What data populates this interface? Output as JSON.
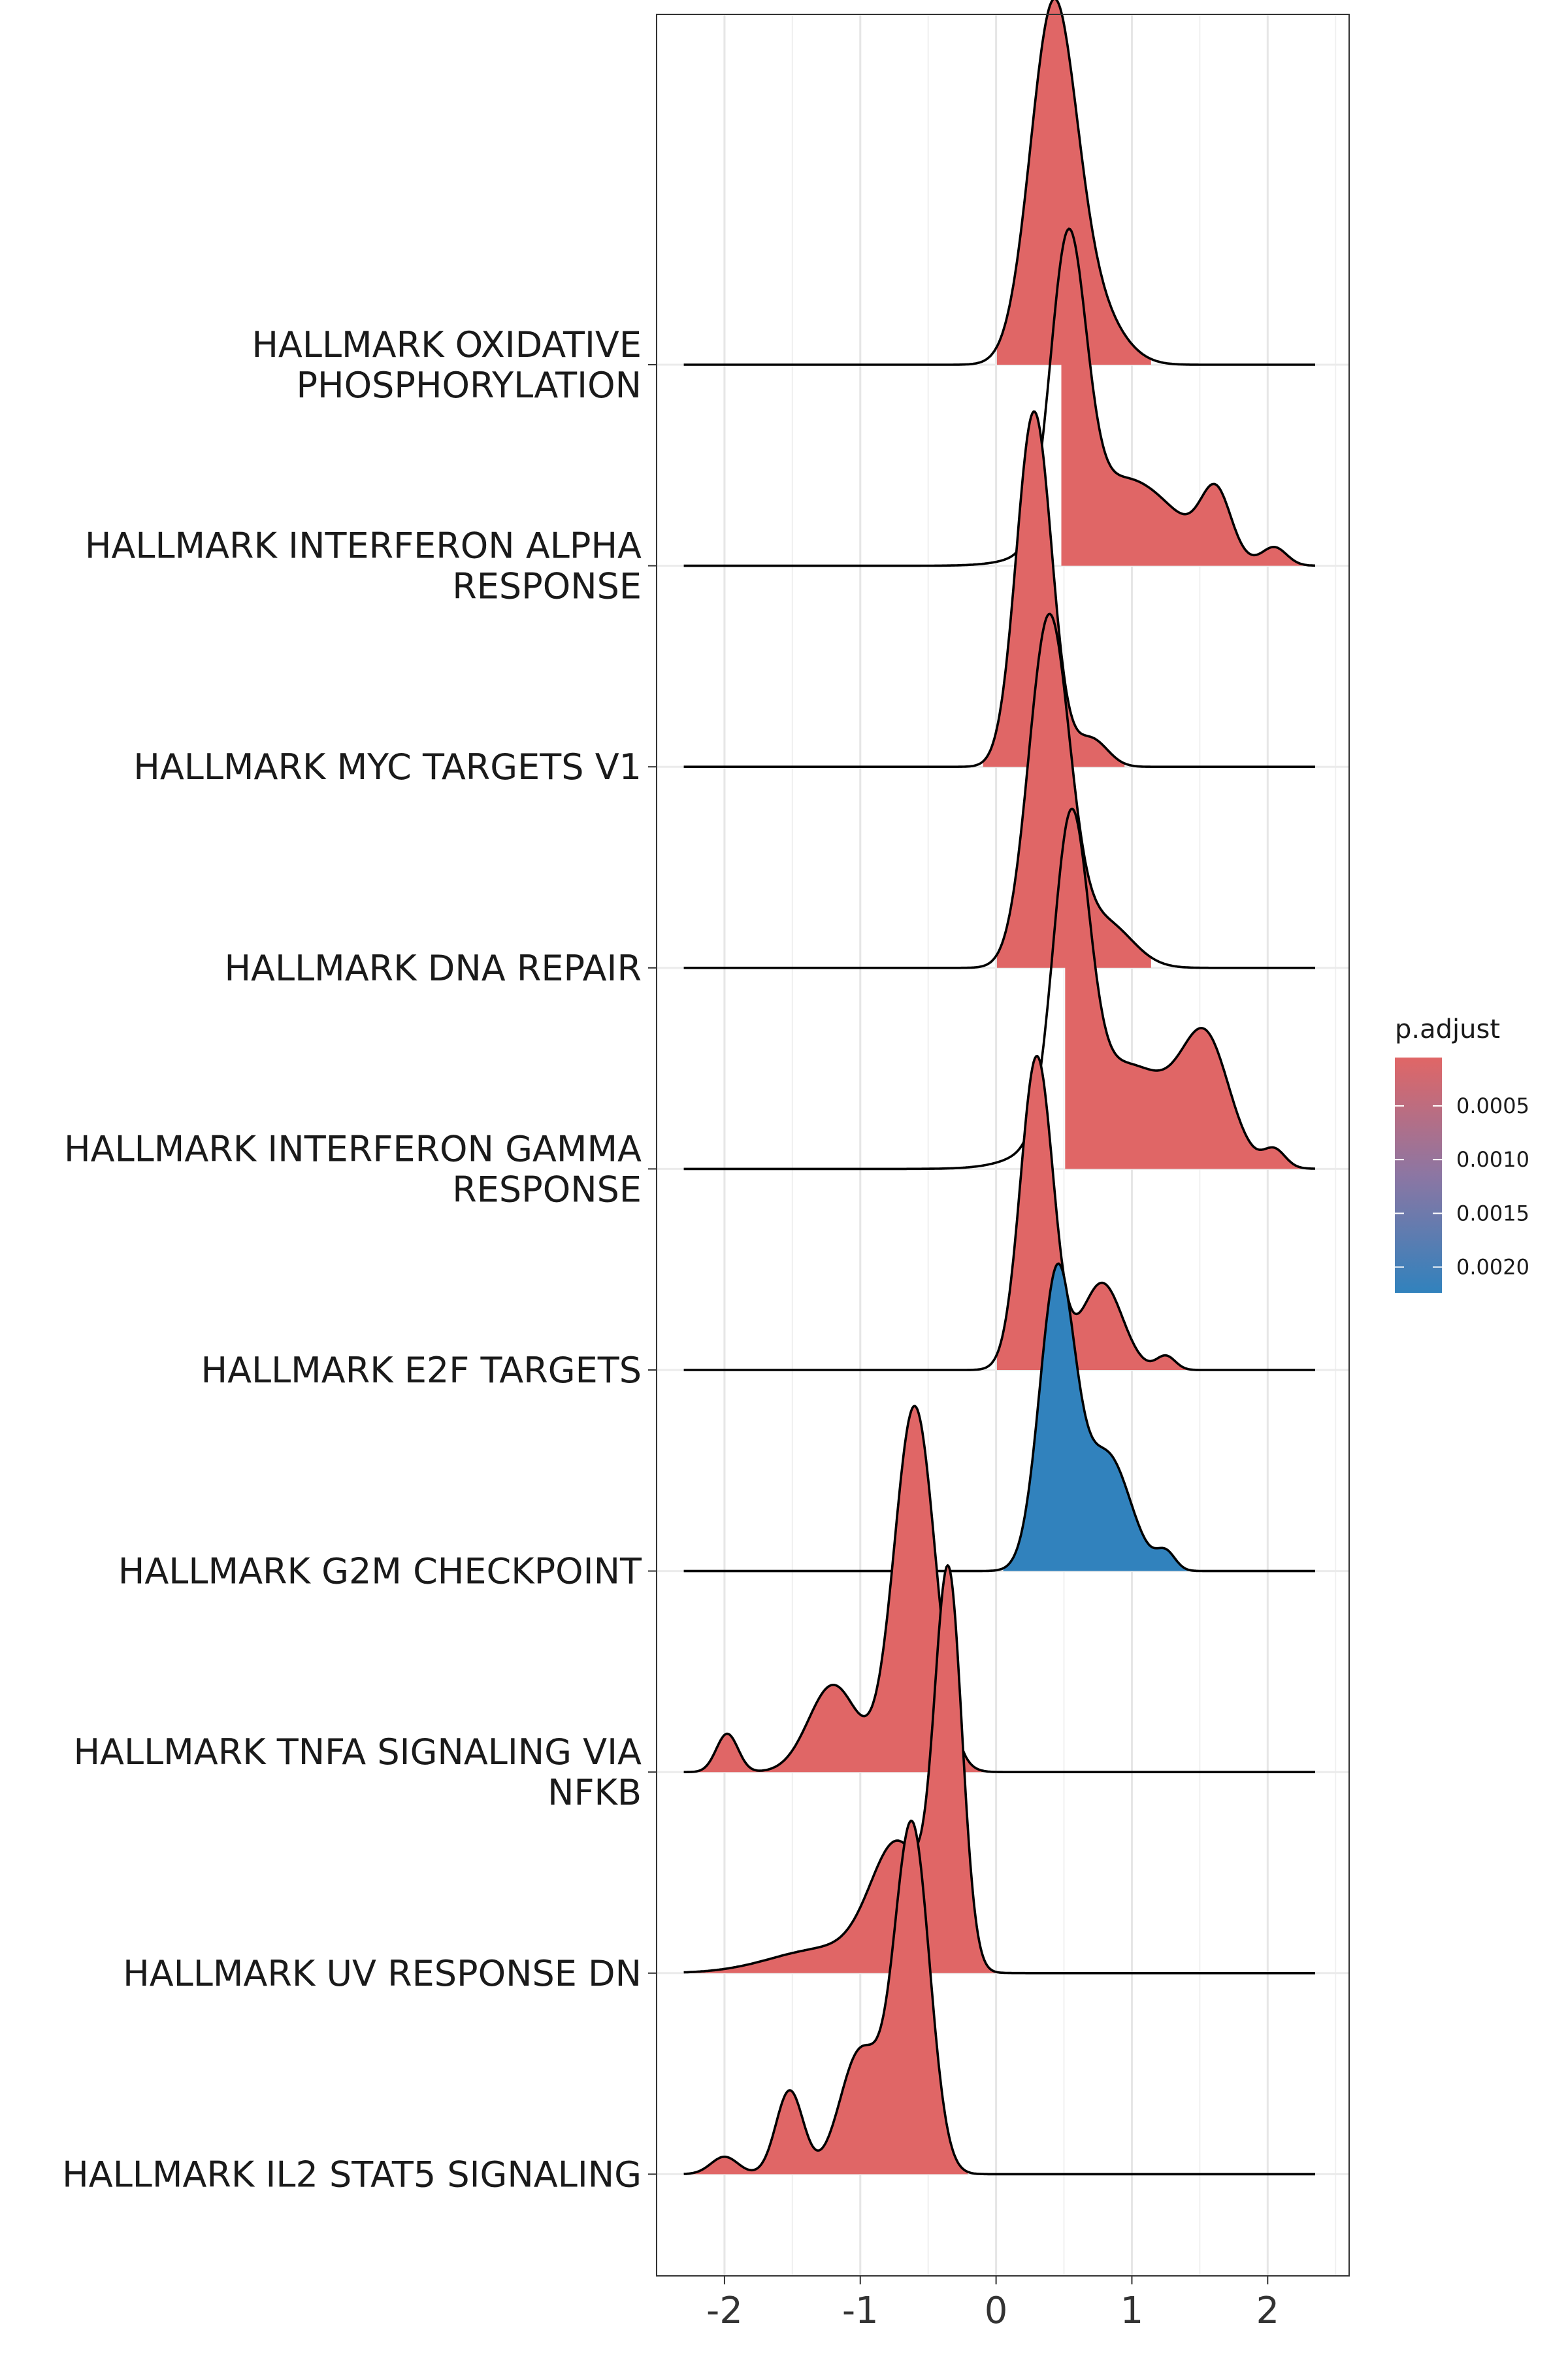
{
  "chart_data": {
    "type": "ridgeline",
    "xlim": [
      -2.5,
      2.6
    ],
    "xticks": [
      {
        "value": -2,
        "label": "-2"
      },
      {
        "value": -1,
        "label": "-1"
      },
      {
        "value": 0,
        "label": "0"
      },
      {
        "value": 1,
        "label": "1"
      },
      {
        "value": 2,
        "label": "2"
      }
    ],
    "grid": true,
    "legend": {
      "title": "p.adjust",
      "placement": "right",
      "low_color": "#E06666",
      "high_color": "#3182BD",
      "range": [
        5e-05,
        0.00224
      ],
      "ticks": [
        {
          "value": 0.0005,
          "label": "0.0005"
        },
        {
          "value": 0.001,
          "label": "0.0010"
        },
        {
          "value": 0.0015,
          "label": "0.0015"
        },
        {
          "value": 0.002,
          "label": "0.0020"
        }
      ]
    },
    "series": [
      {
        "line1": "HALLMARK OXIDATIVE",
        "line2": "PHOSPHORYLATION",
        "color": "#E06666",
        "x_range": [
          -2.3,
          2.35
        ],
        "fill_range": [
          0.0,
          1.15
        ],
        "peaks": [
          {
            "m": 0.42,
            "s": 0.17,
            "h": 1.0
          },
          {
            "m": 0.72,
            "s": 0.2,
            "h": 0.15
          }
        ]
      },
      {
        "line1": "HALLMARK INTERFERON ALPHA",
        "line2": "RESPONSE",
        "color": "#E06666",
        "x_range": [
          -2.3,
          2.35
        ],
        "fill_range": [
          0.48,
          2.35
        ],
        "peaks": [
          {
            "m": 0.53,
            "s": 0.13,
            "h": 0.83
          },
          {
            "m": 0.95,
            "s": 0.38,
            "h": 0.25
          },
          {
            "m": 1.62,
            "s": 0.11,
            "h": 0.18
          },
          {
            "m": 2.05,
            "s": 0.09,
            "h": 0.05
          }
        ]
      },
      {
        "line1": "HALLMARK MYC TARGETS V1",
        "line2": "",
        "color": "#E06666",
        "x_range": [
          -2.3,
          2.35
        ],
        "fill_range": [
          -0.1,
          0.95
        ],
        "peaks": [
          {
            "m": 0.28,
            "s": 0.13,
            "h": 1.02
          },
          {
            "m": 0.7,
            "s": 0.12,
            "h": 0.08
          }
        ]
      },
      {
        "line1": "HALLMARK DNA REPAIR",
        "line2": "",
        "color": "#E06666",
        "x_range": [
          -2.3,
          2.35
        ],
        "fill_range": [
          0.0,
          1.15
        ],
        "peaks": [
          {
            "m": 0.39,
            "s": 0.15,
            "h": 1.0
          },
          {
            "m": 0.8,
            "s": 0.2,
            "h": 0.13
          }
        ]
      },
      {
        "line1": "HALLMARK INTERFERON GAMMA",
        "line2": "RESPONSE",
        "color": "#E06666",
        "x_range": [
          -2.3,
          2.35
        ],
        "fill_range": [
          0.5,
          2.35
        ],
        "peaks": [
          {
            "m": 0.55,
            "s": 0.13,
            "h": 0.85
          },
          {
            "m": 0.95,
            "s": 0.4,
            "h": 0.3
          },
          {
            "m": 1.55,
            "s": 0.17,
            "h": 0.3
          },
          {
            "m": 2.05,
            "s": 0.08,
            "h": 0.05
          }
        ]
      },
      {
        "line1": "HALLMARK E2F TARGETS",
        "line2": "",
        "color": "#E06666",
        "x_range": [
          -2.3,
          2.35
        ],
        "fill_range": [
          0.0,
          1.45
        ],
        "peaks": [
          {
            "m": 0.3,
            "s": 0.12,
            "h": 0.9
          },
          {
            "m": 0.78,
            "s": 0.15,
            "h": 0.25
          },
          {
            "m": 1.25,
            "s": 0.07,
            "h": 0.04
          }
        ]
      },
      {
        "line1": "HALLMARK G2M CHECKPOINT",
        "line2": "",
        "color": "#3182BD",
        "x_range": [
          -2.3,
          2.35
        ],
        "fill_range": [
          0.05,
          1.45
        ],
        "peaks": [
          {
            "m": 0.45,
            "s": 0.13,
            "h": 0.85
          },
          {
            "m": 0.82,
            "s": 0.17,
            "h": 0.33
          },
          {
            "m": 1.25,
            "s": 0.07,
            "h": 0.05
          }
        ]
      },
      {
        "line1": "HALLMARK TNFA SIGNALING VIA",
        "line2": "NFKB",
        "color": "#E06666",
        "x_range": [
          -2.3,
          2.35
        ],
        "fill_range": [
          -2.3,
          -0.05
        ],
        "peaks": [
          {
            "m": -0.6,
            "s": 0.15,
            "h": 1.05
          },
          {
            "m": -1.2,
            "s": 0.18,
            "h": 0.25
          },
          {
            "m": -1.98,
            "s": 0.08,
            "h": 0.11
          }
        ]
      },
      {
        "line1": "HALLMARK UV RESPONSE DN",
        "line2": "",
        "color": "#E06666",
        "x_range": [
          -2.3,
          2.35
        ],
        "fill_range": [
          -2.3,
          0.0
        ],
        "peaks": [
          {
            "m": -0.35,
            "s": 0.1,
            "h": 1.1
          },
          {
            "m": -0.72,
            "s": 0.2,
            "h": 0.35
          },
          {
            "m": -1.25,
            "s": 0.4,
            "h": 0.07
          }
        ]
      },
      {
        "line1": "HALLMARK IL2 STAT5 SIGNALING",
        "line2": "",
        "color": "#E06666",
        "x_range": [
          -2.3,
          2.35
        ],
        "fill_range": [
          -2.3,
          -0.2
        ],
        "peaks": [
          {
            "m": -0.62,
            "s": 0.13,
            "h": 1.0
          },
          {
            "m": -1.0,
            "s": 0.15,
            "h": 0.35
          },
          {
            "m": -1.52,
            "s": 0.1,
            "h": 0.24
          },
          {
            "m": -2.0,
            "s": 0.1,
            "h": 0.05
          }
        ]
      }
    ]
  }
}
